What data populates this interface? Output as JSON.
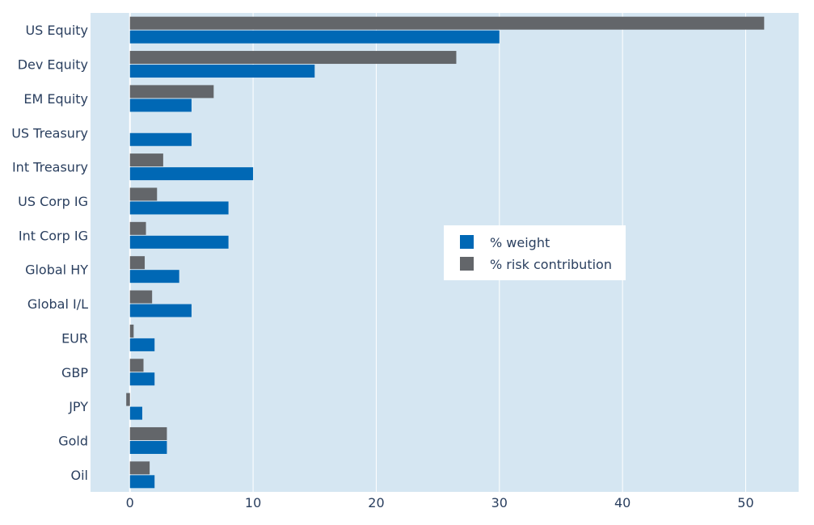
{
  "chart_data": {
    "type": "bar",
    "orientation": "horizontal",
    "categories": [
      "US Equity",
      "Dev Equity",
      "EM Equity",
      "US Treasury",
      "Int Treasury",
      "US Corp IG",
      "Int Corp IG",
      "Global HY",
      "Global I/L",
      "EUR",
      "GBP",
      "JPY",
      "Gold",
      "Oil"
    ],
    "series": [
      {
        "name": "% weight",
        "color": "#0068b5",
        "values": [
          30,
          15,
          5,
          5,
          10,
          8,
          8,
          4,
          5,
          2,
          2,
          1,
          3,
          2
        ]
      },
      {
        "name": "% risk contribution",
        "color": "#63666a",
        "values": [
          51.5,
          26.5,
          6.8,
          0,
          2.7,
          2.2,
          1.3,
          1.2,
          1.8,
          0.3,
          1.1,
          -0.3,
          3.0,
          1.6
        ]
      }
    ],
    "xlim": [
      -3.2,
      54.3
    ],
    "xticks": [
      0,
      10,
      20,
      30,
      40,
      50
    ],
    "grid": true,
    "legend_position": "center-right",
    "plot_bgcolor": "#d5e6f2"
  }
}
